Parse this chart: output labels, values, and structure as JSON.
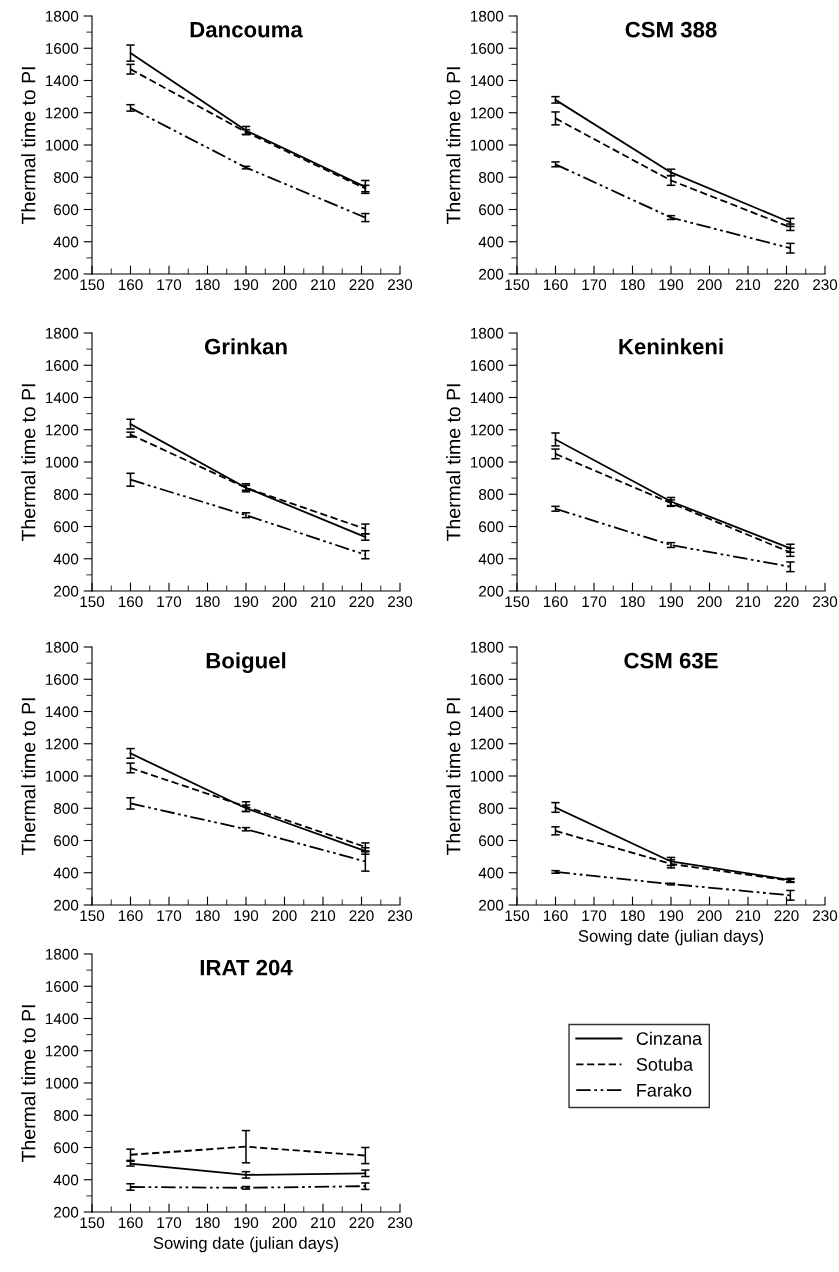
{
  "chart_data": [
    {
      "type": "line",
      "title": "Dancouma",
      "ylabel": "Thermal time to PI",
      "x": [
        160,
        190,
        221
      ],
      "xlim": [
        150,
        230
      ],
      "xticks": [
        150,
        160,
        170,
        180,
        190,
        200,
        210,
        220,
        230
      ],
      "ylim": [
        200,
        1800
      ],
      "yticks": [
        200,
        400,
        600,
        800,
        1000,
        1200,
        1400,
        1600,
        1800
      ],
      "marker": "none",
      "legend": "bottom right",
      "series": [
        {
          "name": "Cinzana",
          "color": "#000000",
          "line_style": "solid",
          "values": [
            1570,
            1090,
            740
          ],
          "errors": [
            50,
            25,
            40
          ]
        },
        {
          "name": "Sotuba",
          "color": "#000000",
          "line_style": "dashed",
          "values": [
            1470,
            1080,
            730
          ],
          "errors": [
            30,
            15,
            20
          ]
        },
        {
          "name": "Farako",
          "color": "#000000",
          "line_style": "dashdot",
          "values": [
            1230,
            860,
            550
          ],
          "errors": [
            20,
            8,
            25
          ]
        }
      ]
    },
    {
      "type": "line",
      "title": "CSM 388",
      "ylabel": "Thermal time to PI",
      "x": [
        160,
        190,
        221
      ],
      "xlim": [
        150,
        230
      ],
      "xticks": [
        150,
        160,
        170,
        180,
        190,
        200,
        210,
        220,
        230
      ],
      "ylim": [
        200,
        1800
      ],
      "yticks": [
        200,
        400,
        600,
        800,
        1000,
        1200,
        1400,
        1600,
        1800
      ],
      "marker": "none",
      "series": [
        {
          "color": "#000000",
          "line_style": "solid",
          "values": [
            1280,
            830,
            520
          ],
          "errors": [
            20,
            20,
            25
          ]
        },
        {
          "color": "#000000",
          "line_style": "dashed",
          "values": [
            1165,
            780,
            490
          ],
          "errors": [
            40,
            30,
            20
          ]
        },
        {
          "color": "#000000",
          "line_style": "dashdot",
          "values": [
            880,
            550,
            360
          ],
          "errors": [
            15,
            12,
            30
          ]
        }
      ]
    },
    {
      "type": "line",
      "title": "Grinkan",
      "ylabel": "Thermal time to PI",
      "x": [
        160,
        190,
        221
      ],
      "xlim": [
        150,
        230
      ],
      "xticks": [
        150,
        160,
        170,
        180,
        190,
        200,
        210,
        220,
        230
      ],
      "ylim": [
        200,
        1800
      ],
      "yticks": [
        200,
        400,
        600,
        800,
        1000,
        1200,
        1400,
        1600,
        1800
      ],
      "marker": "none",
      "series": [
        {
          "color": "#000000",
          "line_style": "solid",
          "values": [
            1235,
            840,
            535
          ],
          "errors": [
            30,
            25,
            20
          ]
        },
        {
          "color": "#000000",
          "line_style": "dashed",
          "values": [
            1170,
            840,
            585
          ],
          "errors": [
            15,
            15,
            30
          ]
        },
        {
          "color": "#000000",
          "line_style": "dashdot",
          "values": [
            890,
            670,
            425
          ],
          "errors": [
            40,
            15,
            25
          ]
        }
      ]
    },
    {
      "type": "line",
      "title": "Keninkeni",
      "ylabel": "Thermal time to PI",
      "x": [
        160,
        190,
        221
      ],
      "xlim": [
        150,
        230
      ],
      "xticks": [
        150,
        160,
        170,
        180,
        190,
        200,
        210,
        220,
        230
      ],
      "ylim": [
        200,
        1800
      ],
      "yticks": [
        200,
        400,
        600,
        800,
        1000,
        1200,
        1400,
        1600,
        1800
      ],
      "marker": "none",
      "series": [
        {
          "color": "#000000",
          "line_style": "solid",
          "values": [
            1140,
            755,
            465
          ],
          "errors": [
            40,
            25,
            25
          ]
        },
        {
          "color": "#000000",
          "line_style": "dashed",
          "values": [
            1050,
            745,
            440
          ],
          "errors": [
            30,
            20,
            25
          ]
        },
        {
          "color": "#000000",
          "line_style": "dashdot",
          "values": [
            710,
            485,
            350
          ],
          "errors": [
            15,
            15,
            30
          ]
        }
      ]
    },
    {
      "type": "line",
      "title": "Boiguel",
      "ylabel": "Thermal time to PI",
      "x": [
        160,
        190,
        221
      ],
      "xlim": [
        150,
        230
      ],
      "xticks": [
        150,
        160,
        170,
        180,
        190,
        200,
        210,
        220,
        230
      ],
      "ylim": [
        200,
        1800
      ],
      "yticks": [
        200,
        400,
        600,
        800,
        1000,
        1200,
        1400,
        1600,
        1800
      ],
      "marker": "none",
      "series": [
        {
          "color": "#000000",
          "line_style": "solid",
          "values": [
            1140,
            800,
            535
          ],
          "errors": [
            30,
            20,
            20
          ]
        },
        {
          "color": "#000000",
          "line_style": "dashed",
          "values": [
            1050,
            810,
            560
          ],
          "errors": [
            30,
            30,
            25
          ]
        },
        {
          "color": "#000000",
          "line_style": "dashdot",
          "values": [
            830,
            670,
            470
          ],
          "errors": [
            35,
            10,
            60
          ]
        }
      ]
    },
    {
      "type": "line",
      "title": "CSM 63E",
      "xlabel": "Sowing date (julian days)",
      "ylabel": "Thermal time to PI",
      "x": [
        160,
        190,
        221
      ],
      "xlim": [
        150,
        230
      ],
      "xticks": [
        150,
        160,
        170,
        180,
        190,
        200,
        210,
        220,
        230
      ],
      "ylim": [
        200,
        1800
      ],
      "yticks": [
        200,
        400,
        600,
        800,
        1000,
        1200,
        1400,
        1600,
        1800
      ],
      "marker": "none",
      "series": [
        {
          "color": "#000000",
          "line_style": "solid",
          "values": [
            805,
            470,
            355
          ],
          "errors": [
            30,
            25,
            10
          ]
        },
        {
          "color": "#000000",
          "line_style": "dashed",
          "values": [
            660,
            455,
            350
          ],
          "errors": [
            25,
            25,
            10
          ]
        },
        {
          "color": "#000000",
          "line_style": "dashdot",
          "values": [
            405,
            330,
            260
          ],
          "errors": [
            8,
            5,
            30
          ]
        }
      ]
    },
    {
      "type": "line",
      "title": "IRAT 204",
      "xlabel": "Sowing date (julian days)",
      "ylabel": "Thermal time to PI",
      "x": [
        160,
        190,
        221
      ],
      "xlim": [
        150,
        230
      ],
      "xticks": [
        150,
        160,
        170,
        180,
        190,
        200,
        210,
        220,
        230
      ],
      "ylim": [
        200,
        1800
      ],
      "yticks": [
        200,
        400,
        600,
        800,
        1000,
        1200,
        1400,
        1600,
        1800
      ],
      "marker": "none",
      "series": [
        {
          "color": "#000000",
          "line_style": "solid",
          "values": [
            500,
            430,
            440
          ],
          "errors": [
            15,
            20,
            20
          ]
        },
        {
          "color": "#000000",
          "line_style": "dashed",
          "values": [
            555,
            605,
            550
          ],
          "errors": [
            35,
            100,
            50
          ]
        },
        {
          "color": "#000000",
          "line_style": "dashdot",
          "values": [
            355,
            350,
            360
          ],
          "errors": [
            20,
            8,
            20
          ]
        }
      ]
    }
  ]
}
